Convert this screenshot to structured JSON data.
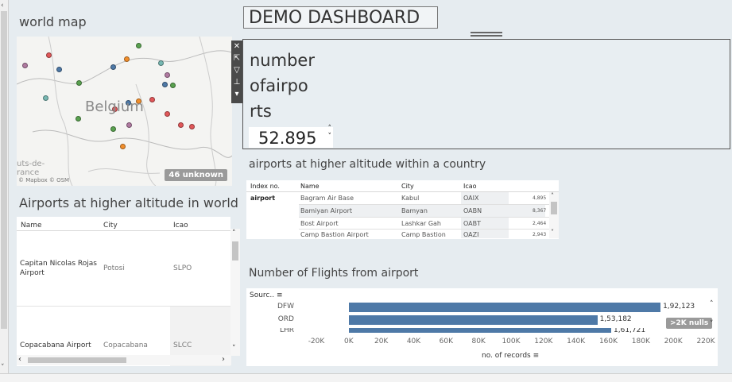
{
  "world_map": {
    "title": "world map",
    "country_label": "Belgium",
    "side_label_1": "uts-de-",
    "side_label_2": "rance",
    "attribution": "© Mapbox © OSM",
    "unknown_badge": "46 unknown"
  },
  "map_tools": [
    "close-icon",
    "popout-icon",
    "filter-icon",
    "pin-icon",
    "more-icon"
  ],
  "table_world": {
    "title": "Airports at higher altitude in world",
    "columns": [
      "Name",
      "City",
      "Icao"
    ],
    "rows": [
      {
        "name": "Capitan Nicolas Rojas Airport",
        "city": "Potosi",
        "icao": "SLPO"
      },
      {
        "name": "Copacabana Airport",
        "city": "Copacabana",
        "icao": "SLCC"
      }
    ]
  },
  "dashboard": {
    "title": "DEMO DASHBOARD"
  },
  "parameter": {
    "title_lines": [
      "number",
      "ofairpo",
      "rts"
    ],
    "value": "52.895"
  },
  "table_country": {
    "title": "airports at higher altitude within a country",
    "columns": [
      "Index no.",
      "Name",
      "City",
      "Icao"
    ],
    "group": "airport",
    "rows": [
      {
        "name": "Bagram Air Base",
        "city": "Kabul",
        "icao": "OAIX",
        "index": "4,895"
      },
      {
        "name": "Bamiyan Airport",
        "city": "Bamyan",
        "icao": "OABN",
        "index": "8,367"
      },
      {
        "name": "Bost Airport",
        "city": "Lashkar Gah",
        "icao": "OABT",
        "index": "2,464"
      },
      {
        "name": "Camp Bastion Airport",
        "city": "Camp Bastion",
        "icao": "OAZI",
        "index": "2,943"
      }
    ]
  },
  "flights": {
    "title": "Number of Flights from airport",
    "row_header": "Sourc..",
    "null_badge": ">2K nulls"
  },
  "chart_data": {
    "type": "bar",
    "orientation": "horizontal",
    "title": "Number of Flights from airport",
    "xlabel": "no. of records",
    "ylabel": "Sourc..",
    "categories": [
      "DFW",
      "ORD",
      "LHR"
    ],
    "values": [
      192123,
      153182,
      161721
    ],
    "value_labels": [
      "1,92,123",
      "1,53,182",
      "1,61,721"
    ],
    "xlim": [
      -20000,
      220000
    ],
    "xticks": [
      "-20K",
      "0K",
      "20K",
      "40K",
      "60K",
      "80K",
      "100K",
      "120K",
      "140K",
      "160K",
      "180K",
      "200K",
      "220K"
    ],
    "color": "#4e79a7",
    "grid": false
  }
}
